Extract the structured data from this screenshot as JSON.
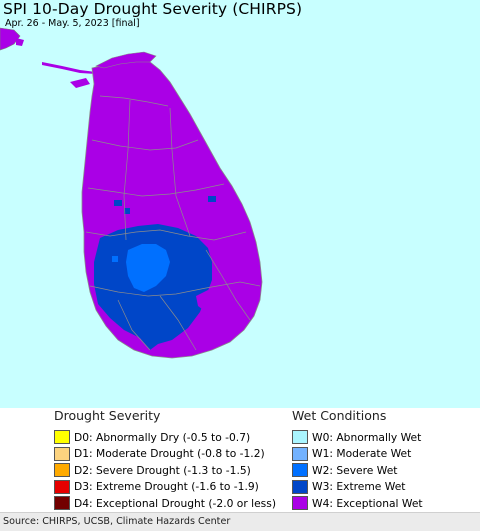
{
  "header": {
    "title": "SPI 10-Day Drought Severity (CHIRPS)",
    "subtitle": "Apr. 26 - May. 5, 2023 [final]"
  },
  "map": {
    "ocean_color": "#c8ffff",
    "land_other_color": "#ffffff",
    "boundary_color": "#9a9a9a",
    "dominant_class": "W4"
  },
  "legend_drought": {
    "heading": "Drought Severity",
    "items": [
      {
        "code": "D0",
        "label": "D0: Abnormally Dry (-0.5 to -0.7)",
        "color": "#ffff00"
      },
      {
        "code": "D1",
        "label": "D1: Moderate Drought (-0.8 to -1.2)",
        "color": "#fcd37f"
      },
      {
        "code": "D2",
        "label": "D2: Severe Drought (-1.3 to -1.5)",
        "color": "#ffaa00"
      },
      {
        "code": "D3",
        "label": "D3: Extreme Drought (-1.6 to -1.9)",
        "color": "#e60000"
      },
      {
        "code": "D4",
        "label": "D4: Exceptional Drought (-2.0 or less)",
        "color": "#730000"
      }
    ]
  },
  "legend_wet": {
    "heading": "Wet Conditions",
    "items": [
      {
        "code": "W0",
        "label": "W0: Abnormally Wet",
        "color": "#aaf5ff"
      },
      {
        "code": "W1",
        "label": "W1: Moderate Wet",
        "color": "#73b2ff"
      },
      {
        "code": "W2",
        "label": "W2: Severe Wet",
        "color": "#0070ff"
      },
      {
        "code": "W3",
        "label": "W3: Extreme Wet",
        "color": "#0046c8"
      },
      {
        "code": "W4",
        "label": "W4: Exceptional Wet",
        "color": "#aa00e6"
      }
    ]
  },
  "footer": {
    "source": "Source: CHIRPS, UCSB, Climate Hazards Center"
  }
}
